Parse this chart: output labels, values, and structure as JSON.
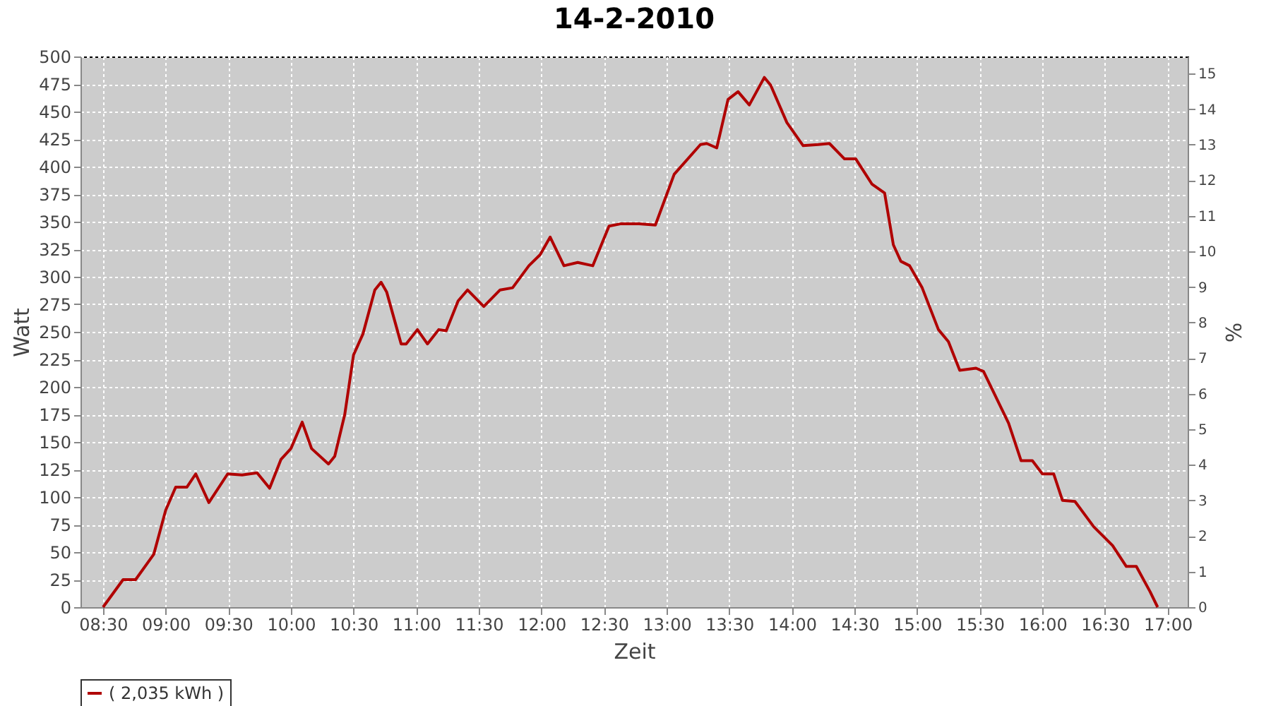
{
  "chart_data": {
    "type": "line",
    "title": "14-2-2010",
    "xlabel": "Zeit",
    "ylabel": "Watt",
    "y2label": "%",
    "series": [
      {
        "name": "( 2,035 kWh )",
        "color": "#b00000",
        "x": [
          8.5,
          8.66,
          8.76,
          8.905,
          9.0,
          9.08,
          9.17,
          9.24,
          9.345,
          9.495,
          9.61,
          9.73,
          9.83,
          9.92,
          10.0,
          10.09,
          10.165,
          10.3,
          10.35,
          10.43,
          10.5,
          10.575,
          10.67,
          10.72,
          10.765,
          10.88,
          10.92,
          11.01,
          11.09,
          11.18,
          11.24,
          11.335,
          11.41,
          11.54,
          11.67,
          11.77,
          11.9,
          11.99,
          12.07,
          12.18,
          12.29,
          12.41,
          12.54,
          12.63,
          12.78,
          12.91,
          13.06,
          13.27,
          13.32,
          13.4,
          13.49,
          13.57,
          13.66,
          13.78,
          13.83,
          13.96,
          14.09,
          14.21,
          14.3,
          14.42,
          14.51,
          14.64,
          14.74,
          14.81,
          14.87,
          14.94,
          15.04,
          15.17,
          15.25,
          15.34,
          15.47,
          15.53,
          15.73,
          15.83,
          15.92,
          16.0,
          16.09,
          16.16,
          16.26,
          16.41,
          16.56,
          16.67,
          16.75,
          16.86,
          16.92
        ],
        "values": [
          0,
          25,
          25,
          48,
          88,
          109,
          109,
          121,
          95,
          121,
          120,
          122,
          108,
          134,
          144,
          168,
          144,
          130,
          137,
          175,
          229,
          248,
          288,
          295,
          286,
          239,
          239,
          252,
          239,
          252,
          251,
          278,
          288,
          273,
          288,
          290,
          310,
          320,
          336,
          310,
          313,
          310,
          346,
          348,
          348,
          347,
          393,
          420,
          421,
          417,
          461,
          468,
          456,
          481,
          474,
          440,
          419,
          420,
          421,
          407,
          407,
          384,
          376,
          329,
          314,
          310,
          290,
          252,
          241,
          215,
          217,
          214,
          167,
          133,
          133,
          121,
          121,
          97,
          96,
          73,
          56,
          37,
          37,
          14,
          0
        ]
      }
    ],
    "xlim": [
      8.32,
      17.16
    ],
    "xticks": [
      {
        "value": 8.5,
        "label": "08:30"
      },
      {
        "value": 9,
        "label": "09:00"
      },
      {
        "value": 9.5,
        "label": "09:30"
      },
      {
        "value": 10,
        "label": "10:00"
      },
      {
        "value": 10.5,
        "label": "10:30"
      },
      {
        "value": 11,
        "label": "11:00"
      },
      {
        "value": 11.5,
        "label": "11:30"
      },
      {
        "value": 12,
        "label": "12:00"
      },
      {
        "value": 12.5,
        "label": "12:30"
      },
      {
        "value": 13,
        "label": "13:00"
      },
      {
        "value": 13.5,
        "label": "13:30"
      },
      {
        "value": 14,
        "label": "14:00"
      },
      {
        "value": 14.5,
        "label": "14:30"
      },
      {
        "value": 15,
        "label": "15:00"
      },
      {
        "value": 15.5,
        "label": "15:30"
      },
      {
        "value": 16,
        "label": "16:00"
      },
      {
        "value": 16.5,
        "label": "16:30"
      },
      {
        "value": 17,
        "label": "17:00"
      }
    ],
    "ylim": [
      0,
      500
    ],
    "yticks": [
      0,
      25,
      50,
      75,
      100,
      125,
      150,
      175,
      200,
      225,
      250,
      275,
      300,
      325,
      350,
      375,
      400,
      425,
      450,
      475,
      500
    ],
    "y2lim": [
      0,
      15.48
    ],
    "y2ticks": [
      0,
      1,
      2,
      3,
      4,
      5,
      6,
      7,
      8,
      9,
      10,
      11,
      12,
      13,
      14,
      15
    ],
    "grid": true,
    "legend": "bottom",
    "marker": "none",
    "line_style": "solid"
  }
}
